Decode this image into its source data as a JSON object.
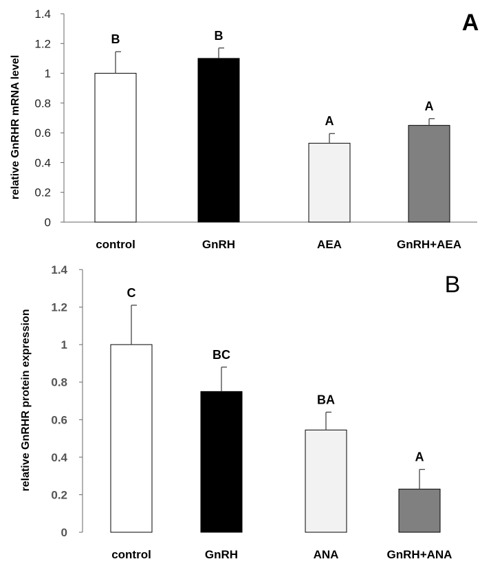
{
  "chart_data": [
    {
      "type": "bar",
      "panel_label": "A",
      "title": "",
      "xlabel": "",
      "ylabel": "relative GnRHR mRNA level",
      "ylim": [
        0,
        1.4
      ],
      "yticks": [
        "0",
        "0.2",
        "0.4",
        "0.6",
        "0.8",
        "1",
        "1.2",
        "1.4"
      ],
      "categories": [
        "control",
        "GnRH",
        "AEA",
        "GnRH+AEA"
      ],
      "values": [
        1.0,
        1.1,
        0.53,
        0.65
      ],
      "errors": [
        0.145,
        0.07,
        0.065,
        0.045
      ],
      "significance": [
        "B",
        "B",
        "A",
        "A"
      ],
      "colors": [
        "#ffffff",
        "#000000",
        "#f2f2f2",
        "#808080"
      ]
    },
    {
      "type": "bar",
      "panel_label": "B",
      "title": "",
      "xlabel": "",
      "ylabel": "relative GnRHR protein expression",
      "ylim": [
        0,
        1.4
      ],
      "yticks": [
        "0",
        "0.2",
        "0.4",
        "0.6",
        "0.8",
        "1",
        "1.2",
        "1.4"
      ],
      "categories": [
        "control",
        "GnRH",
        "ANA",
        "GnRH+ANA"
      ],
      "values": [
        1.0,
        0.75,
        0.545,
        0.23
      ],
      "errors": [
        0.21,
        0.13,
        0.095,
        0.105
      ],
      "significance": [
        "C",
        "BC",
        "BA",
        "A"
      ],
      "colors": [
        "#ffffff",
        "#000000",
        "#f2f2f2",
        "#808080"
      ]
    }
  ]
}
